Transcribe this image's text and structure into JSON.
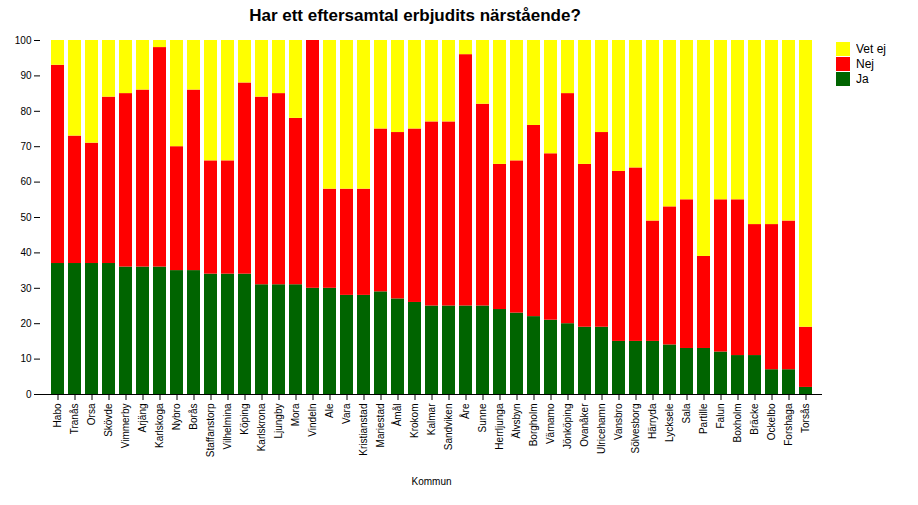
{
  "chart_data": {
    "type": "bar",
    "stacked": true,
    "title": "Har ett eftersamtal erbjudits närstående?",
    "xlabel": "Kommun",
    "categories": [
      "Habo",
      "Tranås",
      "Orsa",
      "Skövde",
      "Vimmerby",
      "Arjäng",
      "Karlskoga",
      "Nybro",
      "Borås",
      "Staffanstorp",
      "Vilhelmina",
      "Köping",
      "Karlskrona",
      "Ljungby",
      "Mora",
      "Vindeln",
      "Ale",
      "Vara",
      "Kristianstad",
      "Mariestad",
      "Åmål",
      "Krokom",
      "Kalmar",
      "Sandviken",
      "Åre",
      "Sunne",
      "Herrljunga",
      "Älvsbyn",
      "Borgholm",
      "Värnamo",
      "Jönköping",
      "Ovanåker",
      "Ulricehamn",
      "Vansbro",
      "Sölvesborg",
      "Härryda",
      "Lycksele",
      "Sala",
      "Partille",
      "Falun",
      "Boxholm",
      "Bräcke",
      "Ockelbo",
      "Forshaga",
      "Torsås"
    ],
    "series": [
      {
        "name": "Ja",
        "color": "#006400",
        "values": [
          37,
          37,
          37,
          37,
          36,
          36,
          36,
          35,
          35,
          34,
          34,
          34,
          31,
          31,
          31,
          30,
          30,
          28,
          28,
          29,
          27,
          26,
          25,
          25,
          25,
          25,
          24,
          23,
          22,
          21,
          20,
          19,
          19,
          15,
          15,
          15,
          14,
          13,
          13,
          12,
          11,
          11,
          7,
          7,
          2
        ]
      },
      {
        "name": "Nej",
        "color": "#ff0000",
        "values": [
          56,
          36,
          34,
          47,
          49,
          50,
          62,
          35,
          51,
          32,
          32,
          54,
          53,
          54,
          47,
          70,
          28,
          30,
          30,
          46,
          47,
          49,
          52,
          52,
          71,
          57,
          41,
          43,
          54,
          47,
          65,
          46,
          55,
          48,
          49,
          34,
          39,
          42,
          26,
          43,
          44,
          37,
          41,
          42,
          17
        ]
      },
      {
        "name": "Vet ej",
        "color": "#ffff00",
        "values": [
          7,
          27,
          29,
          16,
          15,
          14,
          2,
          30,
          14,
          34,
          34,
          12,
          16,
          15,
          22,
          0,
          42,
          42,
          42,
          25,
          26,
          25,
          23,
          23,
          4,
          18,
          35,
          34,
          24,
          32,
          15,
          35,
          26,
          37,
          36,
          51,
          47,
          45,
          61,
          45,
          45,
          52,
          52,
          51,
          81
        ]
      }
    ],
    "ylim": [
      0,
      100
    ],
    "yticks": [
      0,
      10,
      20,
      30,
      40,
      50,
      60,
      70,
      80,
      90,
      100
    ],
    "grid": false,
    "legend": "upper right"
  }
}
